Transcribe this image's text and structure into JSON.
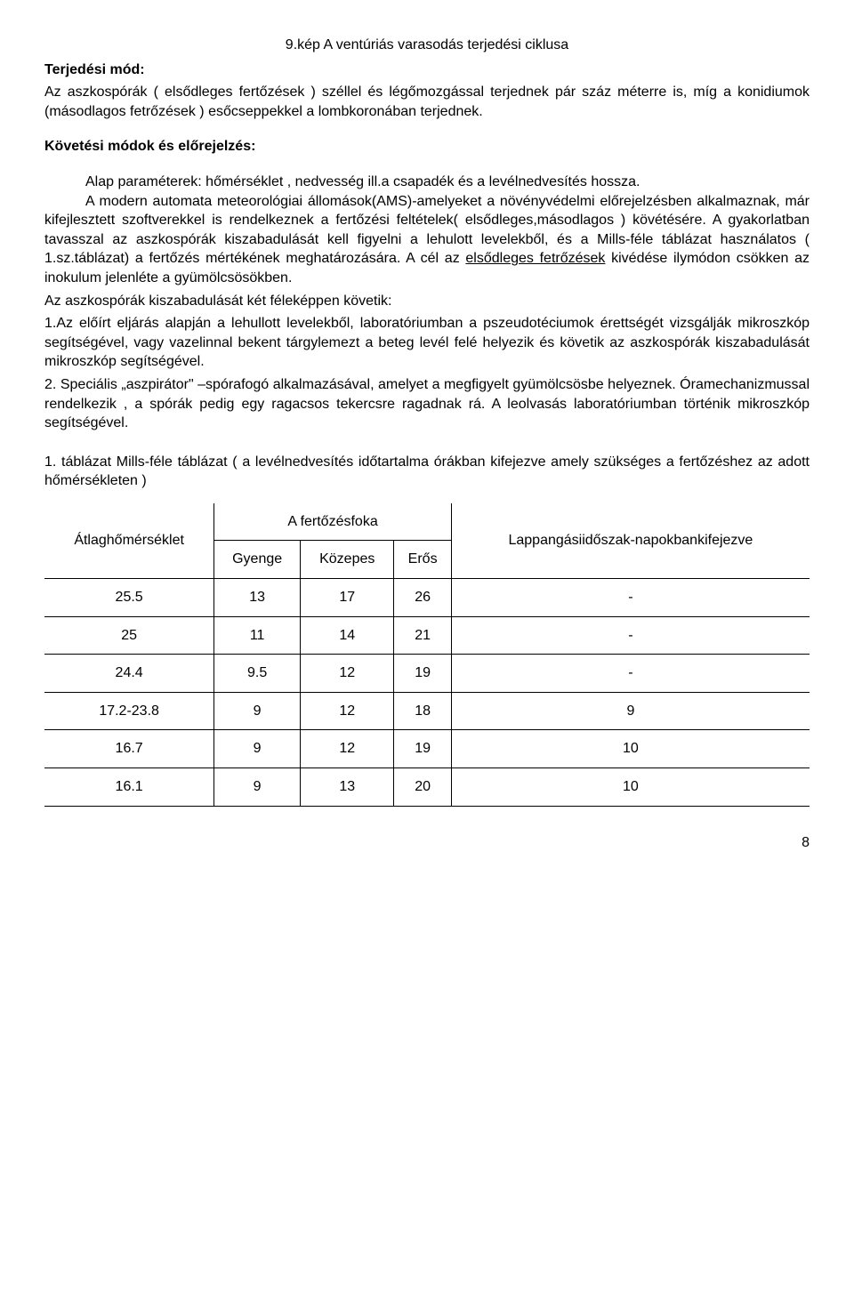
{
  "caption": "9.kép A ventúriás varasodás terjedési ciklusa",
  "h1": "Terjedési mód:",
  "p1": "Az aszkospórák ( elsődleges fertőzések ) széllel és légőmozgással terjednek pár száz méterre is, míg a konidiumok (másodlagos fetrőzések ) esőcseppekkel a lombkoronában terjednek.",
  "h2": "Követési módok és előrejelzés:",
  "p2a_indent": "Alap paraméterek: hőmérséklet , nedvesség ill.a csapadék és a levélnedvesítés hossza.",
  "p2b": "A modern automata meteorológiai állomások(AMS)-amelyeket a növényvédelmi előrejelzésben alkalmaznak, már kifejlesztett szoftverekkel is rendelkeznek a fertőzési feltételek( elsődleges,másodlagos ) kövétésére. A gyakorlatban tavasszal az aszkospórák kiszabadulását kell figyelni a lehulott levelekből, és a Mills-féle táblázat használatos ( 1.sz.táblázat)  a fertőzés mértékének meghatározására. A cél az ",
  "p2b_under": "elsődleges fetrőzések",
  "p2b_after": " kivédése ilymódon csökken az inokulum jelenléte a gyümölcsösökben.",
  "p3": "Az aszkospórák kiszabadulását két féleképpen követik:",
  "p4": "1.Az előírt eljárás alapján a lehullott levelekből, laboratóriumban a pszeudotéciumok érettségét vizsgálják mikroszkóp segítségével, vagy vazelinnal bekent  tárgylemezt a beteg levél felé helyezik és követik az aszkospórák kiszabadulását mikroszkóp segítségével.",
  "p5": "2. Speciális „aszpirátor\" –spórafogó alkalmazásával, amelyet a megfigyelt gyümölcsösbe helyeznek. Óramechanizmussal rendelkezik , a spórák pedig egy ragacsos tekercsre ragadnak rá. A leolvasás laboratóriumban történik mikroszkóp segítségével.",
  "tableTitle": "1. táblázat Mills-féle táblázat ( a levélnedvesítés időtartalma órákban kifejezve amely szükséges a fertőzéshez az adott hőmérsékleten )",
  "table": {
    "head": {
      "col1": "Átlaghőmérséklet",
      "grouptop": "A fertőzésfoka",
      "gyenge": "Gyenge",
      "kozepes": "Közepes",
      "eros": "Erős",
      "lappang": "Lappangásiidőszak-napokbankifejezve"
    },
    "rows": [
      {
        "c1": "25.5",
        "c2": "13",
        "c3": "17",
        "c4": "26",
        "c5": "-"
      },
      {
        "c1": "25",
        "c2": "11",
        "c3": "14",
        "c4": "21",
        "c5": "-"
      },
      {
        "c1": "24.4",
        "c2": "9.5",
        "c3": "12",
        "c4": "19",
        "c5": "-"
      },
      {
        "c1": "17.2-23.8",
        "c2": "9",
        "c3": "12",
        "c4": "18",
        "c5": "9"
      },
      {
        "c1": "16.7",
        "c2": "9",
        "c3": "12",
        "c4": "19",
        "c5": "10"
      },
      {
        "c1": "16.1",
        "c2": "9",
        "c3": "13",
        "c4": "20",
        "c5": "10"
      }
    ]
  },
  "pageNum": "8"
}
